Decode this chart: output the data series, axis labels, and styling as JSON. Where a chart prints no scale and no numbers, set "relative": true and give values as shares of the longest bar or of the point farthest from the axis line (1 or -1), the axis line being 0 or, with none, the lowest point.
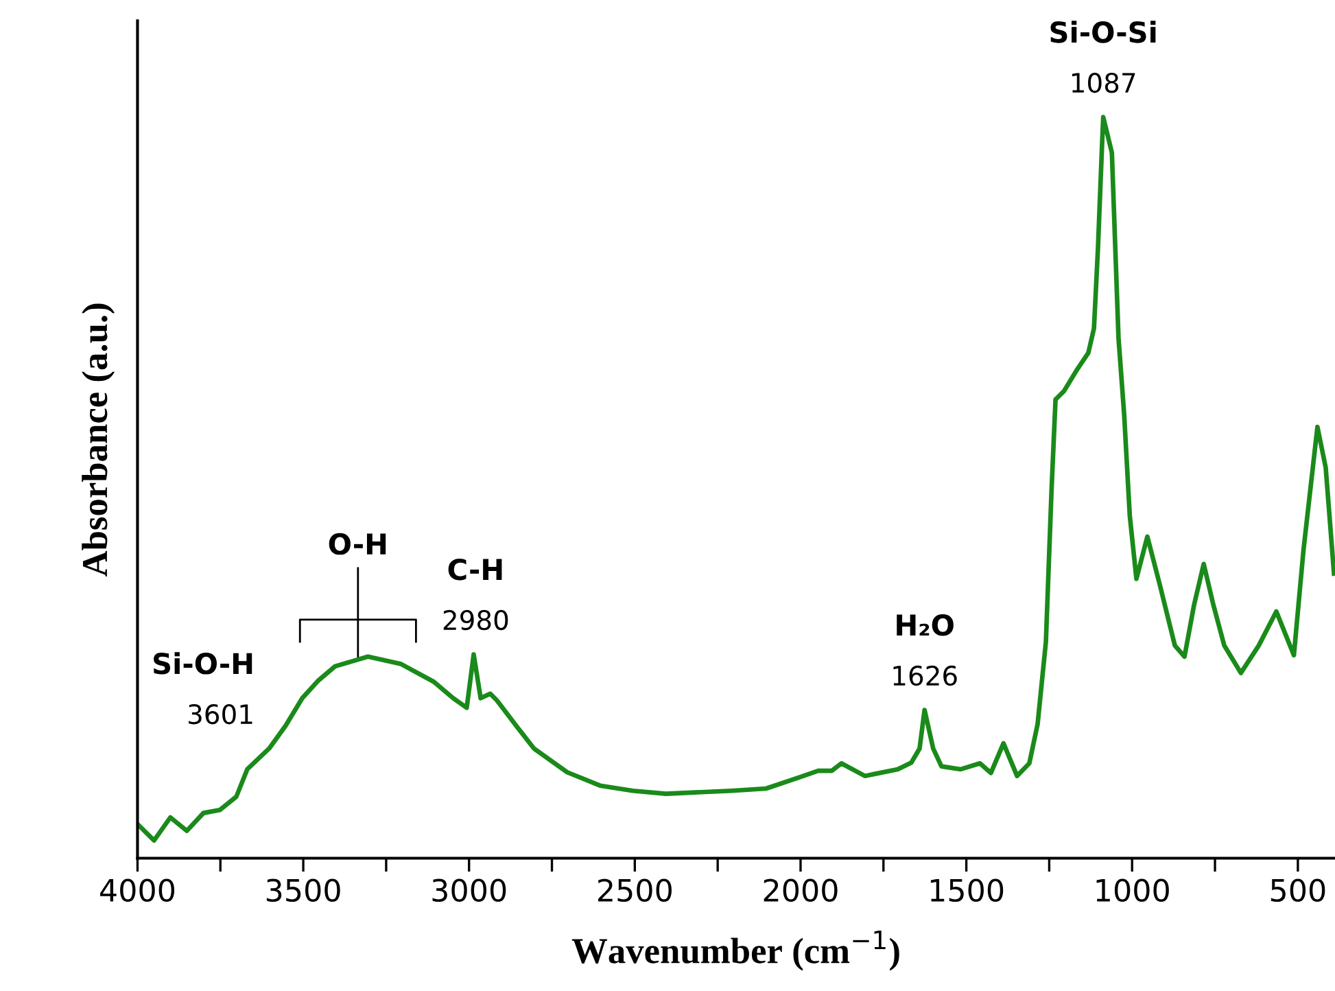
{
  "chart_data": {
    "type": "line",
    "relative": true,
    "xlabel": "Wavenumber (cm$^{−1}$)",
    "ylabel": "Absorbance (a.u.)",
    "xlim": [
      4000,
      388
    ],
    "xticks": [
      4000,
      {
        "value": 3750,
        "label": null
      },
      3500,
      {
        "value": 3250,
        "label": null
      },
      3000,
      {
        "value": 2750,
        "label": null
      },
      2500,
      {
        "value": 2250,
        "label": null
      },
      2000,
      {
        "value": 1750,
        "label": null
      },
      1500,
      {
        "value": 1250,
        "label": null
      },
      1000,
      {
        "value": 750,
        "label": null
      },
      500
    ],
    "grid": false,
    "legend": false,
    "marker": "none",
    "line_style": "solid",
    "series": [
      {
        "color": "#1a8a1a",
        "x": [
          4000,
          3950,
          3901,
          3851,
          3801,
          3752,
          3702,
          3669,
          3603,
          3553,
          3503,
          3454,
          3404,
          3305,
          3205,
          3106,
          3048,
          3007,
          2986,
          2965,
          2936,
          2916,
          2853,
          2804,
          2704,
          2605,
          2506,
          2406,
          2208,
          2104,
          2005,
          1947,
          1906,
          1877,
          1806,
          1707,
          1666,
          1641,
          1626,
          1600,
          1575,
          1517,
          1459,
          1426,
          1388,
          1347,
          1310,
          1285,
          1260,
          1243,
          1231,
          1206,
          1165,
          1132,
          1115,
          1103,
          1090,
          1087,
          1061,
          1041,
          1024,
          1007,
          987,
          954,
          917,
          871,
          842,
          813,
          784,
          755,
          722,
          672,
          618,
          565,
          512,
          483,
          441,
          416,
          391
        ],
        "values": [
          0.046,
          0.024,
          0.055,
          0.037,
          0.061,
          0.065,
          0.083,
          0.12,
          0.148,
          0.179,
          0.216,
          0.24,
          0.259,
          0.272,
          0.262,
          0.238,
          0.216,
          0.203,
          0.275,
          0.216,
          0.222,
          0.213,
          0.176,
          0.148,
          0.116,
          0.098,
          0.091,
          0.087,
          0.091,
          0.094,
          0.109,
          0.118,
          0.118,
          0.128,
          0.111,
          0.12,
          0.129,
          0.148,
          0.2,
          0.148,
          0.124,
          0.12,
          0.128,
          0.115,
          0.155,
          0.111,
          0.128,
          0.181,
          0.292,
          0.497,
          0.619,
          0.63,
          0.66,
          0.682,
          0.715,
          0.823,
          0.97,
          1,
          0.952,
          0.702,
          0.599,
          0.462,
          0.377,
          0.434,
          0.37,
          0.287,
          0.272,
          0.342,
          0.397,
          0.342,
          0.287,
          0.25,
          0.287,
          0.333,
          0.274,
          0.416,
          0.582,
          0.527,
          0.384
        ]
      }
    ],
    "annotations": [
      {
        "text": "Si-O-H",
        "x": 3601,
        "y": 0.148
      },
      {
        "text": "3601",
        "x": 3601,
        "y": 0.148
      },
      {
        "text": "O-H",
        "x": 3335,
        "y": 0.272
      },
      {
        "text": "C-H",
        "x": 2980,
        "y": 0.275
      },
      {
        "text": "2980",
        "x": 2980,
        "y": 0.275
      },
      {
        "text": "H₂O",
        "x": 1626,
        "y": 0.2
      },
      {
        "text": "1626",
        "x": 1626,
        "y": 0.2
      },
      {
        "text": "Si-O-Si",
        "x": 1087,
        "y": 1
      },
      {
        "text": "1087",
        "x": 1087,
        "y": 1
      }
    ]
  }
}
